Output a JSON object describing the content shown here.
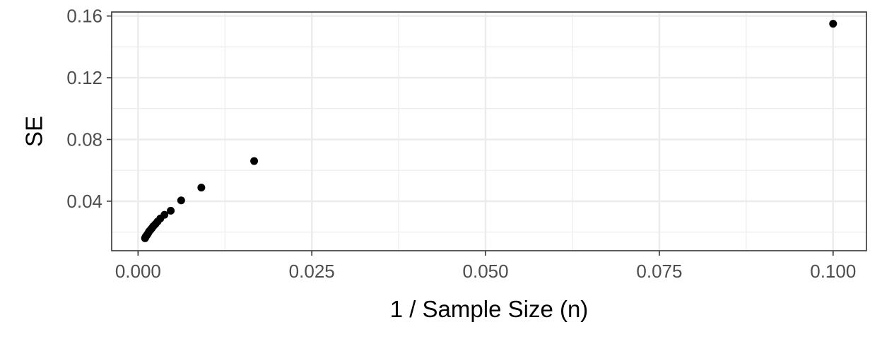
{
  "chart_data": {
    "type": "scatter",
    "title": "",
    "xlabel": "1 / Sample Size (n)",
    "ylabel": "SE",
    "xlim": [
      -0.0038,
      0.1048
    ],
    "ylim": [
      0.0079,
      0.1626
    ],
    "x_ticks": [
      0.0,
      0.025,
      0.05,
      0.075,
      0.1
    ],
    "x_tick_labels": [
      "0.000",
      "0.025",
      "0.050",
      "0.075",
      "0.100"
    ],
    "y_ticks": [
      0.04,
      0.08,
      0.12,
      0.16
    ],
    "y_tick_labels": [
      "0.04",
      "0.08",
      "0.12",
      "0.16"
    ],
    "grid": true,
    "legend": "none",
    "point_color": "#000000",
    "series": [
      {
        "points": [
          {
            "x": 0.1,
            "y": 0.155
          },
          {
            "x": 0.0167,
            "y": 0.066
          },
          {
            "x": 0.0091,
            "y": 0.0488
          },
          {
            "x": 0.0062,
            "y": 0.0405
          },
          {
            "x": 0.0047,
            "y": 0.0338
          },
          {
            "x": 0.0038,
            "y": 0.0312
          },
          {
            "x": 0.0032,
            "y": 0.0288
          },
          {
            "x": 0.0028,
            "y": 0.0268
          },
          {
            "x": 0.0025,
            "y": 0.0252
          },
          {
            "x": 0.0022,
            "y": 0.0238
          },
          {
            "x": 0.002,
            "y": 0.0226
          },
          {
            "x": 0.0018,
            "y": 0.0215
          },
          {
            "x": 0.0016,
            "y": 0.0205
          },
          {
            "x": 0.0015,
            "y": 0.0197
          },
          {
            "x": 0.0014,
            "y": 0.0189
          },
          {
            "x": 0.0013,
            "y": 0.0182
          },
          {
            "x": 0.0012,
            "y": 0.0176
          },
          {
            "x": 0.0011,
            "y": 0.017
          },
          {
            "x": 0.00105,
            "y": 0.0165
          },
          {
            "x": 0.001,
            "y": 0.016
          }
        ]
      }
    ]
  }
}
